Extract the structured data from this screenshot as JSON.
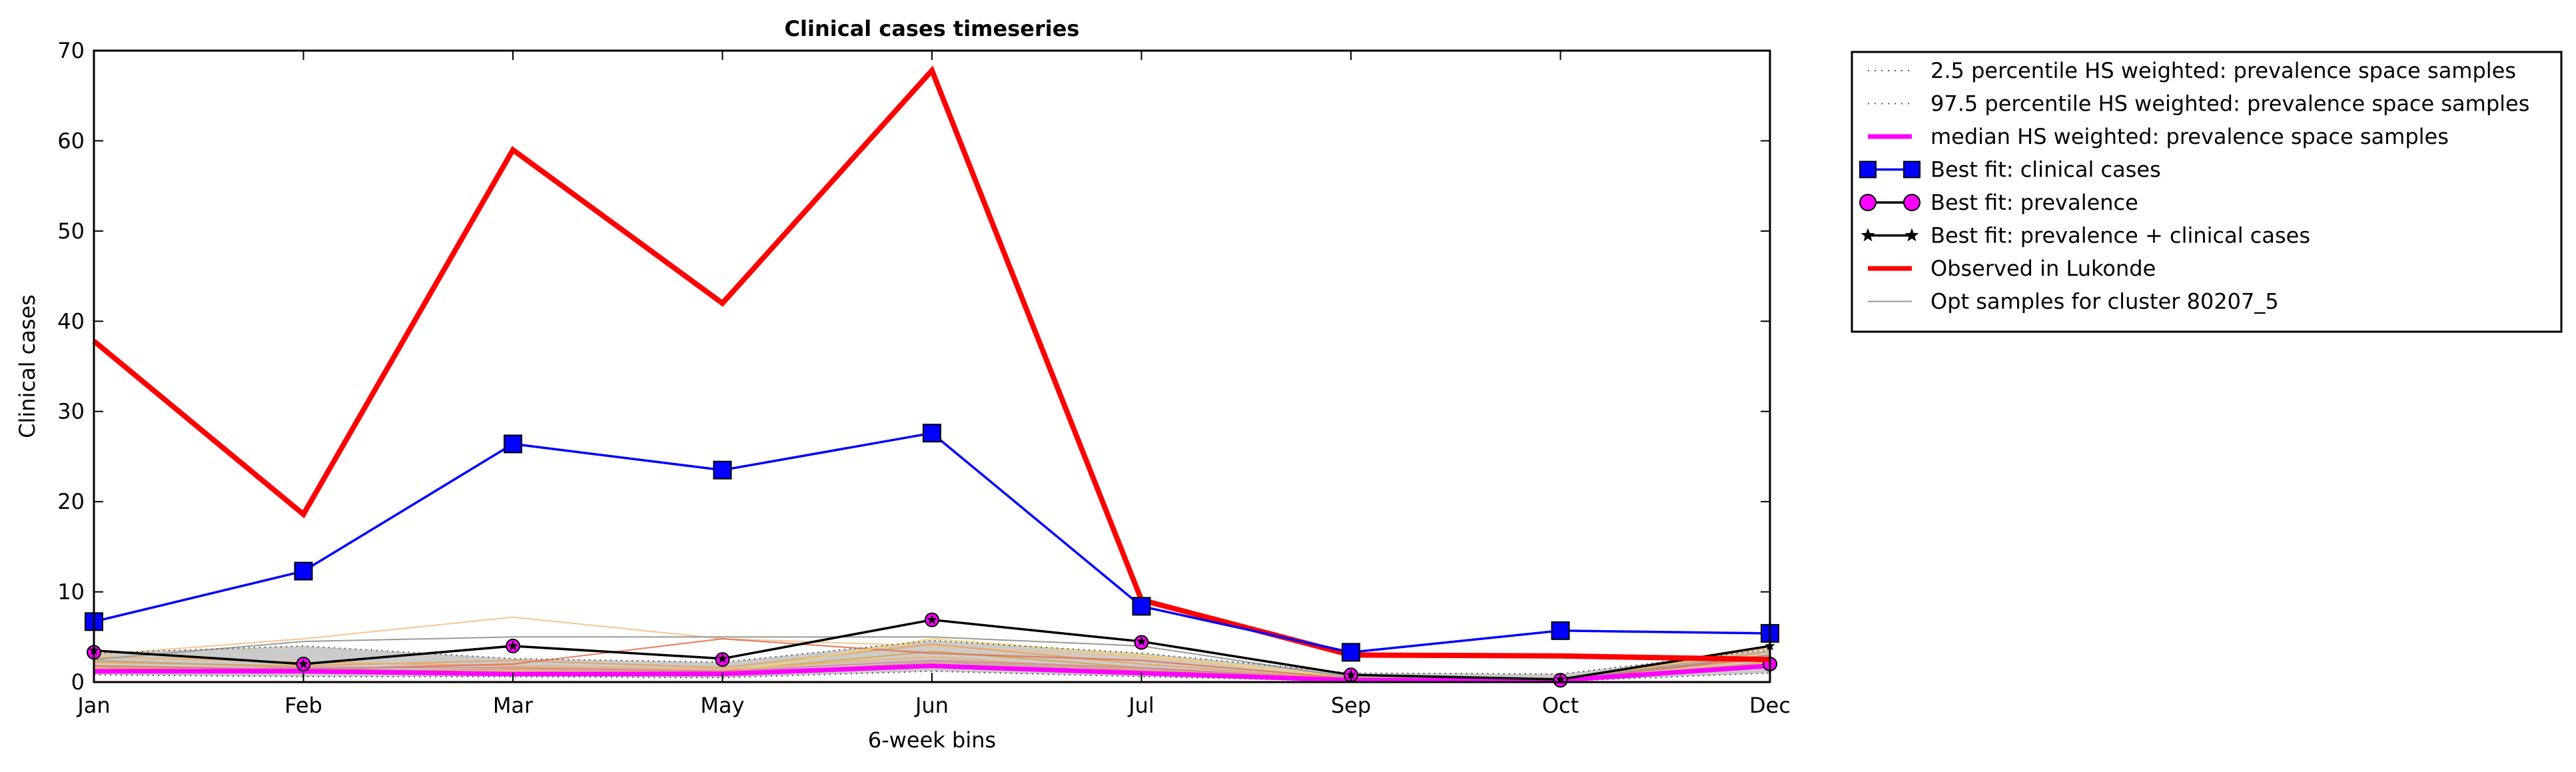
{
  "chart_data": {
    "type": "line",
    "title": "Clinical cases timeseries",
    "xlabel": "6-week bins",
    "ylabel": "Clinical cases",
    "categories": [
      "Jan",
      "Feb",
      "Mar",
      "May",
      "Jun",
      "Jul",
      "Sep",
      "Oct",
      "Dec"
    ],
    "ylim": [
      0,
      70
    ],
    "yticks": [
      0,
      10,
      20,
      30,
      40,
      50,
      60,
      70
    ],
    "grid": false,
    "legend_placement": "outside-top-right",
    "series": [
      {
        "name": "2.5 percentile HS weighted: prevalence space samples",
        "style": "dotted",
        "color": "#555555",
        "values": [
          0.8,
          0.6,
          0.6,
          0.5,
          1.2,
          0.6,
          0.1,
          0.1,
          1.0
        ]
      },
      {
        "name": "97.5 percentile HS weighted: prevalence space samples",
        "style": "dotted",
        "color": "#555555",
        "values": [
          3.2,
          4.0,
          2.6,
          2.2,
          4.6,
          3.2,
          1.0,
          0.9,
          3.6
        ]
      },
      {
        "name": "median HS weighted: prevalence space samples",
        "style": "thick",
        "color": "#ff00ff",
        "values": [
          1.2,
          1.2,
          0.9,
          0.9,
          1.8,
          1.0,
          0.2,
          0.2,
          1.8
        ]
      },
      {
        "name": "Best fit: clinical cases",
        "style": "line-square",
        "color": "#0000ff",
        "values": [
          6.7,
          12.3,
          26.4,
          23.5,
          27.6,
          8.4,
          3.3,
          5.7,
          5.4
        ]
      },
      {
        "name": "Best fit: prevalence",
        "style": "line-circle",
        "color": "#ff00ff",
        "values": [
          3.3,
          2.0,
          4.0,
          2.5,
          6.9,
          4.4,
          0.8,
          0.2,
          2.0
        ]
      },
      {
        "name": "Best fit: prevalence + clinical cases",
        "style": "line-star",
        "color": "#000000",
        "values": [
          3.5,
          2.0,
          4.0,
          2.6,
          6.9,
          4.5,
          0.8,
          0.3,
          4.0
        ]
      },
      {
        "name": "Observed in Lukonde",
        "style": "thick",
        "color": "#ff0000",
        "values": [
          37.8,
          18.6,
          59.0,
          42.0,
          67.8,
          9.1,
          3.0,
          2.9,
          2.5
        ]
      },
      {
        "name": "Opt samples for cluster 80207_5",
        "style": "thin",
        "color": "#999999",
        "values": [
          2.5,
          4.5,
          5.0,
          5.0,
          5.0,
          4.0,
          0.5,
          0.3,
          3.0
        ]
      }
    ],
    "sample_lines": [
      {
        "color": "#f5c08a",
        "values": [
          3.0,
          4.8,
          7.2,
          4.8,
          4.0,
          2.8,
          0.6,
          0.4,
          3.2
        ]
      },
      {
        "color": "#e8a15a",
        "values": [
          2.2,
          1.8,
          2.4,
          1.6,
          4.2,
          2.0,
          0.3,
          0.3,
          2.6
        ]
      },
      {
        "color": "#d9a441",
        "values": [
          1.6,
          1.2,
          1.4,
          1.2,
          3.4,
          1.6,
          0.2,
          0.2,
          2.2
        ]
      },
      {
        "color": "#f0b060",
        "values": [
          2.8,
          2.2,
          1.8,
          1.4,
          2.8,
          1.2,
          0.3,
          0.2,
          3.8
        ]
      },
      {
        "color": "#e07050",
        "values": [
          1.8,
          1.4,
          2.0,
          4.8,
          3.2,
          2.4,
          0.4,
          0.2,
          2.8
        ]
      },
      {
        "color": "#c8a070",
        "values": [
          2.4,
          1.6,
          1.0,
          0.8,
          2.2,
          1.4,
          0.2,
          0.2,
          3.4
        ]
      },
      {
        "color": "#f3d36b",
        "values": [
          1.4,
          1.0,
          1.2,
          1.0,
          4.8,
          3.0,
          0.5,
          0.3,
          1.6
        ]
      },
      {
        "color": "#d87fa0",
        "values": [
          1.2,
          1.6,
          1.6,
          1.2,
          2.4,
          1.6,
          0.3,
          0.2,
          2.0
        ]
      }
    ]
  }
}
